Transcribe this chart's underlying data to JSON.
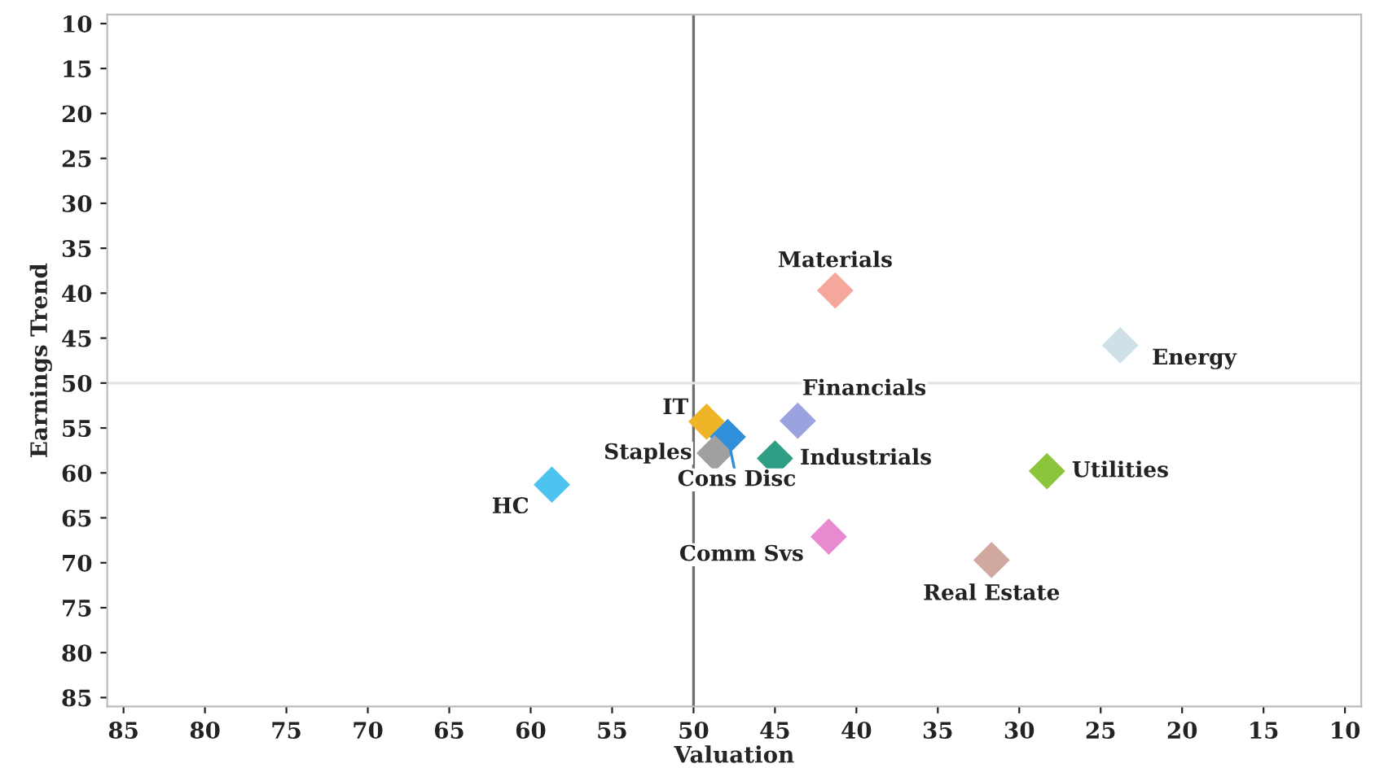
{
  "chart_data": {
    "type": "scatter",
    "xlabel": "Valuation",
    "ylabel": "Earnings Trend",
    "marker": "diamond",
    "grid": false,
    "legend": false,
    "xlim": [
      86,
      9
    ],
    "xticks": [
      85,
      80,
      75,
      70,
      65,
      60,
      55,
      50,
      45,
      40,
      35,
      30,
      25,
      20,
      15,
      10
    ],
    "ylim": [
      86,
      9
    ],
    "yticks": [
      10,
      15,
      20,
      25,
      30,
      35,
      40,
      45,
      50,
      55,
      60,
      65,
      70,
      75,
      80,
      85
    ],
    "ref_lines": [
      {
        "axis": "x",
        "value": 50,
        "color": "#707070"
      },
      {
        "axis": "y",
        "value": 50,
        "color": "#e4e4e4"
      }
    ],
    "series": [
      {
        "name": "Materials",
        "color": "#f4a79a",
        "x": [
          41.3
        ],
        "values": [
          39.7
        ]
      },
      {
        "name": "Energy",
        "color": "#cfe0e8",
        "x": [
          23.8
        ],
        "values": [
          45.8
        ]
      },
      {
        "name": "Financials",
        "color": "#9aa3e0",
        "x": [
          43.6
        ],
        "values": [
          54.2
        ]
      },
      {
        "name": "IT",
        "color": "#f0b429",
        "x": [
          49.2
        ],
        "values": [
          54.3
        ]
      },
      {
        "name": "Cons Disc",
        "color": "#2f8fd8",
        "x": [
          47.9
        ],
        "values": [
          56.0
        ]
      },
      {
        "name": "Staples",
        "color": "#a0a0a0",
        "x": [
          48.7
        ],
        "values": [
          57.8
        ]
      },
      {
        "name": "Industrials",
        "color": "#2e9e87",
        "x": [
          45.0
        ],
        "values": [
          58.4
        ]
      },
      {
        "name": "HC",
        "color": "#4fc3f0",
        "x": [
          58.7
        ],
        "values": [
          61.3
        ]
      },
      {
        "name": "Utilities",
        "color": "#8cc43c",
        "x": [
          28.3
        ],
        "values": [
          59.8
        ]
      },
      {
        "name": "Comm Svs",
        "color": "#e88ad0",
        "x": [
          41.7
        ],
        "values": [
          67.1
        ]
      },
      {
        "name": "Real Estate",
        "color": "#d0a8a0",
        "x": [
          31.7
        ],
        "values": [
          69.7
        ]
      }
    ]
  }
}
